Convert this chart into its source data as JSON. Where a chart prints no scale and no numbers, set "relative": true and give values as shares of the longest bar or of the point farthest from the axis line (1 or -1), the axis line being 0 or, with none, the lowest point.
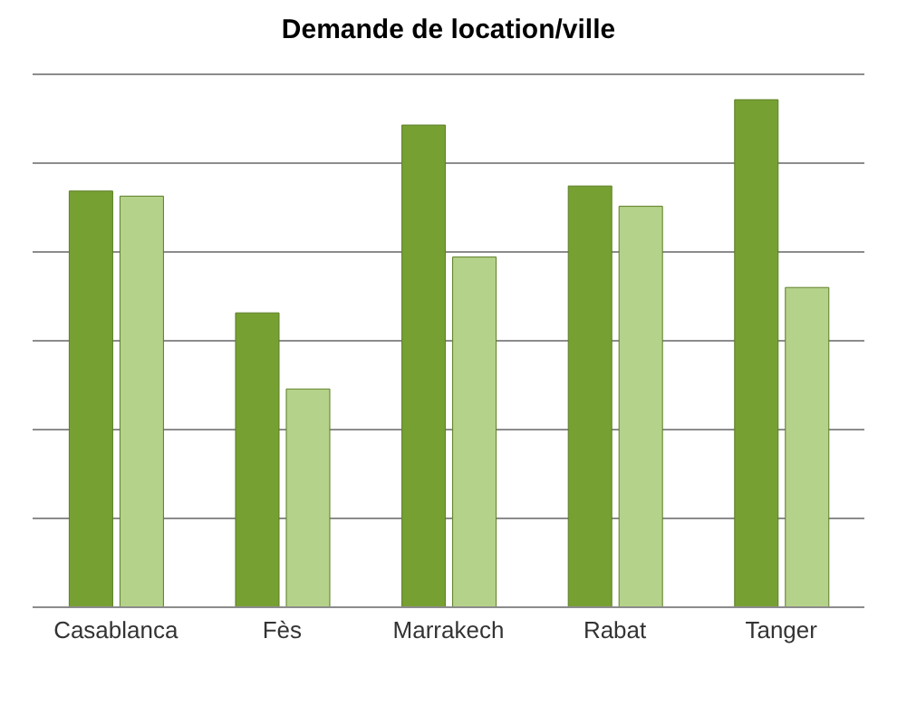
{
  "chart_data": {
    "type": "bar",
    "title": "Demande de location/ville",
    "categories": [
      "Casablanca",
      "Fès",
      "Marrakech",
      "Rabat",
      "Tanger"
    ],
    "series": [
      {
        "color": "#77a033",
        "values": [
          0.82,
          0.58,
          0.95,
          0.83,
          1
        ]
      },
      {
        "color": "#b5d28a",
        "values": [
          0.81,
          0.43,
          0.69,
          0.79,
          0.63
        ]
      }
    ],
    "relative": true,
    "grid": "y"
  }
}
